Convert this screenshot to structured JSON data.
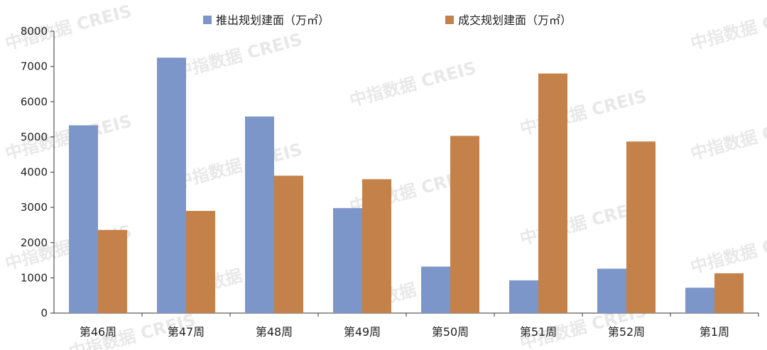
{
  "chart_data": {
    "type": "bar",
    "categories": [
      "第46周",
      "第47周",
      "第48周",
      "第49周",
      "第50周",
      "第51周",
      "第52周",
      "第1周"
    ],
    "series": [
      {
        "name": "推出规划建面（万㎡）",
        "color": "#7c96c9",
        "values": [
          5330,
          7250,
          5580,
          2980,
          1320,
          930,
          1260,
          720
        ]
      },
      {
        "name": "成交规划建面（万㎡）",
        "color": "#c4824a",
        "values": [
          2360,
          2900,
          3900,
          3800,
          5030,
          6800,
          4870,
          1130
        ]
      }
    ],
    "title": "",
    "xlabel": "",
    "ylabel": "",
    "ylim": [
      0,
      8000
    ],
    "yticks": [
      0,
      1000,
      2000,
      3000,
      4000,
      5000,
      6000,
      7000,
      8000
    ],
    "grid": false,
    "legend_position": "top"
  },
  "watermark": "中指数据 CREIS"
}
